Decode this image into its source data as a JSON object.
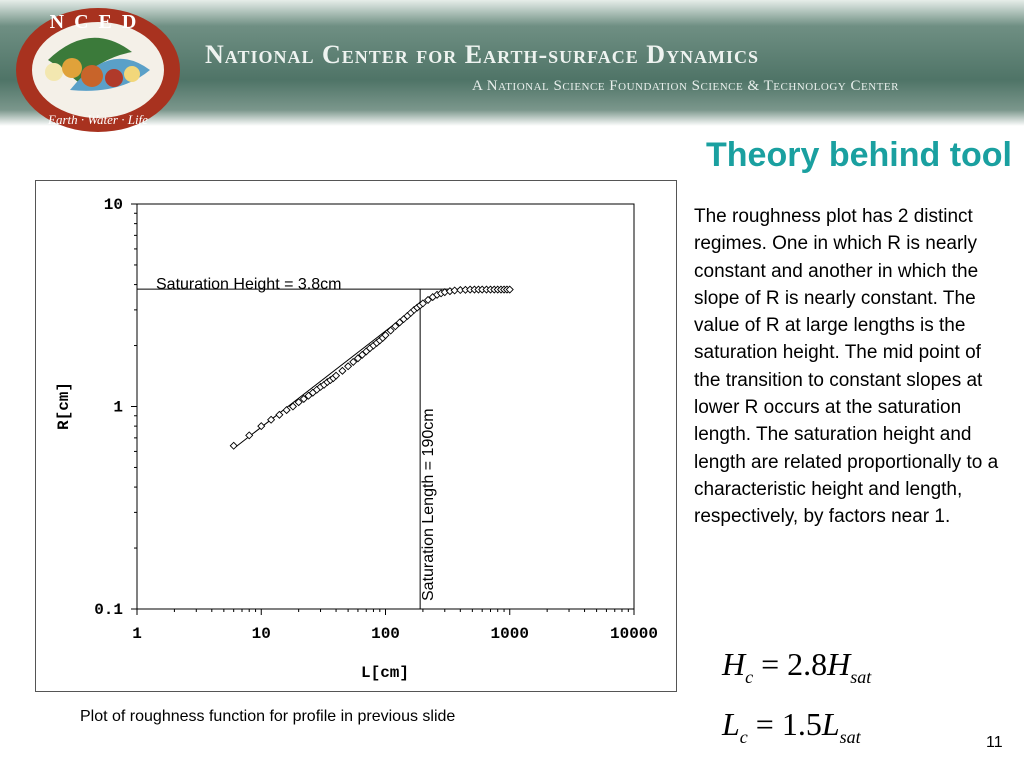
{
  "header": {
    "logo_top_text": "NCED",
    "logo_bottom_text": "Earth · Water · Life",
    "org_name": "National Center for Earth-surface Dynamics",
    "org_subtitle": "A National Science Foundation Science & Technology Center"
  },
  "slide": {
    "title": "Theory behind tool",
    "body": "The roughness plot has 2 distinct regimes.  One in which R is nearly constant and another in which the slope of R is nearly constant.  The value of R at large lengths is the saturation height.  The mid point of the transition to constant slopes at lower R occurs at the saturation length.  The saturation height and length are related proportionally to a characteristic height and length, respectively, by factors near 1.",
    "caption": "Plot of roughness function for profile in previous slide",
    "page_number": "11"
  },
  "equations": [
    {
      "lhs": "H",
      "lhs_sub": "c",
      "op": "=",
      "coef": "2.8",
      "rhs": "H",
      "rhs_sub": "sat"
    },
    {
      "lhs": "L",
      "lhs_sub": "c",
      "op": "=",
      "coef": "1.5",
      "rhs": "L",
      "rhs_sub": "sat"
    }
  ],
  "chart_data": {
    "type": "scatter",
    "x_scale": "log",
    "y_scale": "log",
    "xlabel": "L[cm]",
    "ylabel": "R[cm]",
    "xlim": [
      1,
      10000
    ],
    "ylim": [
      0.1,
      10
    ],
    "x_ticks": [
      "1",
      "10",
      "100",
      "1000",
      "10000"
    ],
    "y_ticks": [
      "0.1",
      "1",
      "10"
    ],
    "grid": false,
    "legend": "none",
    "marker": "diamond-open",
    "series": [
      {
        "x": [
          6,
          8,
          10,
          12,
          14,
          16,
          18,
          20,
          22,
          24,
          26,
          28,
          30,
          32,
          34,
          36,
          38,
          40,
          45,
          50,
          55,
          60,
          65,
          70,
          75,
          80,
          85,
          90,
          95,
          100,
          110,
          120,
          130,
          140,
          150,
          160,
          170,
          180,
          190,
          200,
          220,
          240,
          260,
          280,
          300,
          330,
          360,
          400,
          440,
          480,
          520,
          560,
          600,
          650,
          700,
          750,
          800,
          850,
          900,
          950,
          1000
        ],
        "y": [
          0.64,
          0.72,
          0.8,
          0.86,
          0.91,
          0.96,
          1.0,
          1.05,
          1.09,
          1.13,
          1.17,
          1.21,
          1.25,
          1.28,
          1.32,
          1.35,
          1.38,
          1.42,
          1.5,
          1.58,
          1.66,
          1.73,
          1.8,
          1.87,
          1.94,
          2.0,
          2.06,
          2.12,
          2.18,
          2.25,
          2.37,
          2.49,
          2.6,
          2.7,
          2.8,
          2.9,
          3.0,
          3.08,
          3.16,
          3.23,
          3.36,
          3.47,
          3.56,
          3.62,
          3.67,
          3.71,
          3.74,
          3.76,
          3.77,
          3.78,
          3.78,
          3.78,
          3.78,
          3.78,
          3.78,
          3.78,
          3.78,
          3.78,
          3.78,
          3.78,
          3.78
        ]
      }
    ],
    "fit_line": {
      "x": [
        6,
        190
      ],
      "y": [
        0.62,
        3.2
      ]
    },
    "annotations": [
      {
        "text": "Saturation Height = 3.8cm",
        "value": 3.8,
        "axis": "y"
      },
      {
        "text": "Saturation Length = 190cm",
        "value": 190,
        "axis": "x"
      }
    ]
  },
  "colors": {
    "title": "#1aa0a0",
    "banner_dark": "#4f7467",
    "logo_ring": "#b83a2e"
  }
}
